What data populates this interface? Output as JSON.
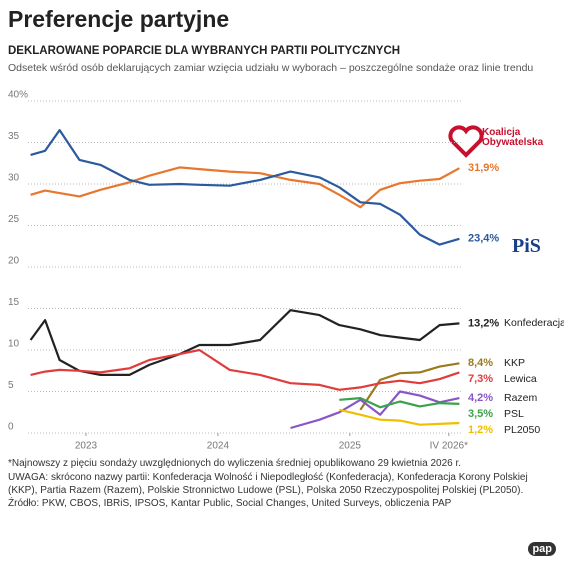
{
  "chart_data": {
    "type": "line",
    "title": "Preferencje partyjne",
    "subtitle": "DEKLAROWANE POPARCIE DLA WYBRANYCH PARTII POLITYCZNYCH",
    "description": "Odsetek wśród osób deklarujących zamiar wzięcia udziału w wyborach – poszczególne sondaże oraz linie trendu",
    "x": [
      2023.08,
      2023.19,
      2023.3,
      2023.45,
      2023.61,
      2023.83,
      2023.98,
      2024.21,
      2024.36,
      2024.59,
      2024.82,
      2025.05,
      2025.27,
      2025.42,
      2025.58,
      2025.73,
      2025.88,
      2026.03,
      2026.18,
      2026.33
    ],
    "xlim": [
      2023,
      2026.35
    ],
    "xticks": [
      {
        "value": 2023.5,
        "label": "2023"
      },
      {
        "value": 2024.5,
        "label": "2024"
      },
      {
        "value": 2025.5,
        "label": "2025"
      },
      {
        "value": 2026.25,
        "label": "IV 2026*"
      }
    ],
    "ylim": [
      0,
      40
    ],
    "yticks": [
      0,
      5,
      10,
      15,
      20,
      25,
      30,
      35,
      {
        "value": 40,
        "label": "40%"
      }
    ],
    "grid": true,
    "series": [
      {
        "name": "Koalicja Obywatelska",
        "color": "#e8772e",
        "values": [
          28.7,
          29.2,
          28.9,
          28.5,
          29.3,
          30.2,
          31,
          32,
          31.8,
          31.5,
          31.3,
          30.5,
          30,
          28.7,
          27.2,
          29.3,
          30.1,
          30.4,
          30.6,
          31.9
        ],
        "value_labels": [
          null,
          null,
          null,
          null,
          null,
          null,
          null,
          null,
          null,
          null,
          null,
          null,
          null,
          null,
          null,
          null,
          null,
          null,
          null,
          "31,9%"
        ]
      },
      {
        "name": "PiS",
        "color": "#2b5a9e",
        "values": [
          33.5,
          34,
          36.5,
          32.9,
          32.3,
          30.5,
          29.9,
          30,
          29.9,
          29.8,
          30.5,
          31.5,
          30.8,
          29.6,
          27.8,
          27.6,
          26.3,
          23.9,
          22.7,
          23.4
        ],
        "value_labels": [
          null,
          null,
          null,
          null,
          null,
          null,
          null,
          null,
          null,
          null,
          null,
          null,
          null,
          null,
          null,
          null,
          null,
          null,
          null,
          "23,4%"
        ]
      },
      {
        "name": "Konfederacja",
        "color": "#222222",
        "values": [
          11.2,
          13.6,
          8.8,
          7.5,
          7,
          7,
          8.2,
          9.5,
          10.6,
          10.6,
          11.2,
          14.8,
          14.2,
          13,
          12.5,
          11.8,
          11.5,
          11.2,
          13,
          13.2
        ],
        "value_labels": [
          null,
          null,
          null,
          null,
          null,
          null,
          null,
          null,
          null,
          null,
          null,
          null,
          null,
          null,
          null,
          null,
          null,
          null,
          null,
          "13,2%"
        ]
      },
      {
        "name": "KKP",
        "color": "#9b7a1e",
        "values": [
          null,
          null,
          null,
          null,
          null,
          null,
          null,
          null,
          null,
          null,
          null,
          null,
          null,
          null,
          2.8,
          6.4,
          7.2,
          7.3,
          8,
          8.4
        ],
        "value_labels": [
          null,
          null,
          null,
          null,
          null,
          null,
          null,
          null,
          null,
          null,
          null,
          null,
          null,
          null,
          null,
          null,
          null,
          null,
          null,
          "8,4%"
        ]
      },
      {
        "name": "Lewica",
        "color": "#e03c3c",
        "values": [
          7,
          7.4,
          7.6,
          7.5,
          7.3,
          7.8,
          8.8,
          9.5,
          10,
          7.6,
          7,
          6,
          5.8,
          5.2,
          5.5,
          6,
          6.3,
          6,
          6.5,
          7.3
        ],
        "value_labels": [
          null,
          null,
          null,
          null,
          null,
          null,
          null,
          null,
          null,
          null,
          null,
          null,
          null,
          null,
          null,
          null,
          null,
          null,
          null,
          "7,3%"
        ]
      },
      {
        "name": "Razem",
        "color": "#8a55c8",
        "values": [
          null,
          null,
          null,
          null,
          null,
          null,
          null,
          null,
          null,
          null,
          null,
          0.6,
          1.6,
          2.5,
          4,
          2.2,
          5,
          4.5,
          3.7,
          4.2
        ],
        "value_labels": [
          null,
          null,
          null,
          null,
          null,
          null,
          null,
          null,
          null,
          null,
          null,
          null,
          null,
          null,
          null,
          null,
          null,
          null,
          null,
          "4,2%"
        ]
      },
      {
        "name": "PSL",
        "color": "#3aa24a",
        "values": [
          null,
          null,
          null,
          null,
          null,
          null,
          null,
          null,
          null,
          null,
          null,
          null,
          null,
          4,
          4.2,
          3.1,
          3.8,
          3.2,
          3.6,
          3.5
        ],
        "value_labels": [
          null,
          null,
          null,
          null,
          null,
          null,
          null,
          null,
          null,
          null,
          null,
          null,
          null,
          null,
          null,
          null,
          null,
          null,
          null,
          "3,5%"
        ]
      },
      {
        "name": "PL2050",
        "color": "#f0c000",
        "values": [
          null,
          null,
          null,
          null,
          null,
          null,
          null,
          null,
          null,
          null,
          null,
          null,
          null,
          2.8,
          2.2,
          1.6,
          1.5,
          1,
          1.1,
          1.2
        ],
        "value_labels": [
          null,
          null,
          null,
          null,
          null,
          null,
          null,
          null,
          null,
          null,
          null,
          null,
          null,
          null,
          null,
          null,
          null,
          null,
          null,
          "1,2%"
        ]
      }
    ],
    "notes": [
      "*Najnowszy z pięciu sondaży uwzględnionych do wyliczenia średniej opublikowano 29 kwietnia 2026 r.",
      "UWAGA: skrócono nazwy partii: Konfederacja Wolność i Niepodległość (Konfederacja), Konfederacja Korony Polskiej (KKP), Partia Razem (Razem), Polskie Stronnictwo Ludowe (PSL), Polska 2050 Rzeczypospolitej Polskiej (PL2050)."
    ],
    "source": "Źródło: PKW, CBOS, IBRiS, IPSOS, Kantar Public, Social Changes, United Surveys, obliczenia PAP",
    "logo": "pap"
  }
}
